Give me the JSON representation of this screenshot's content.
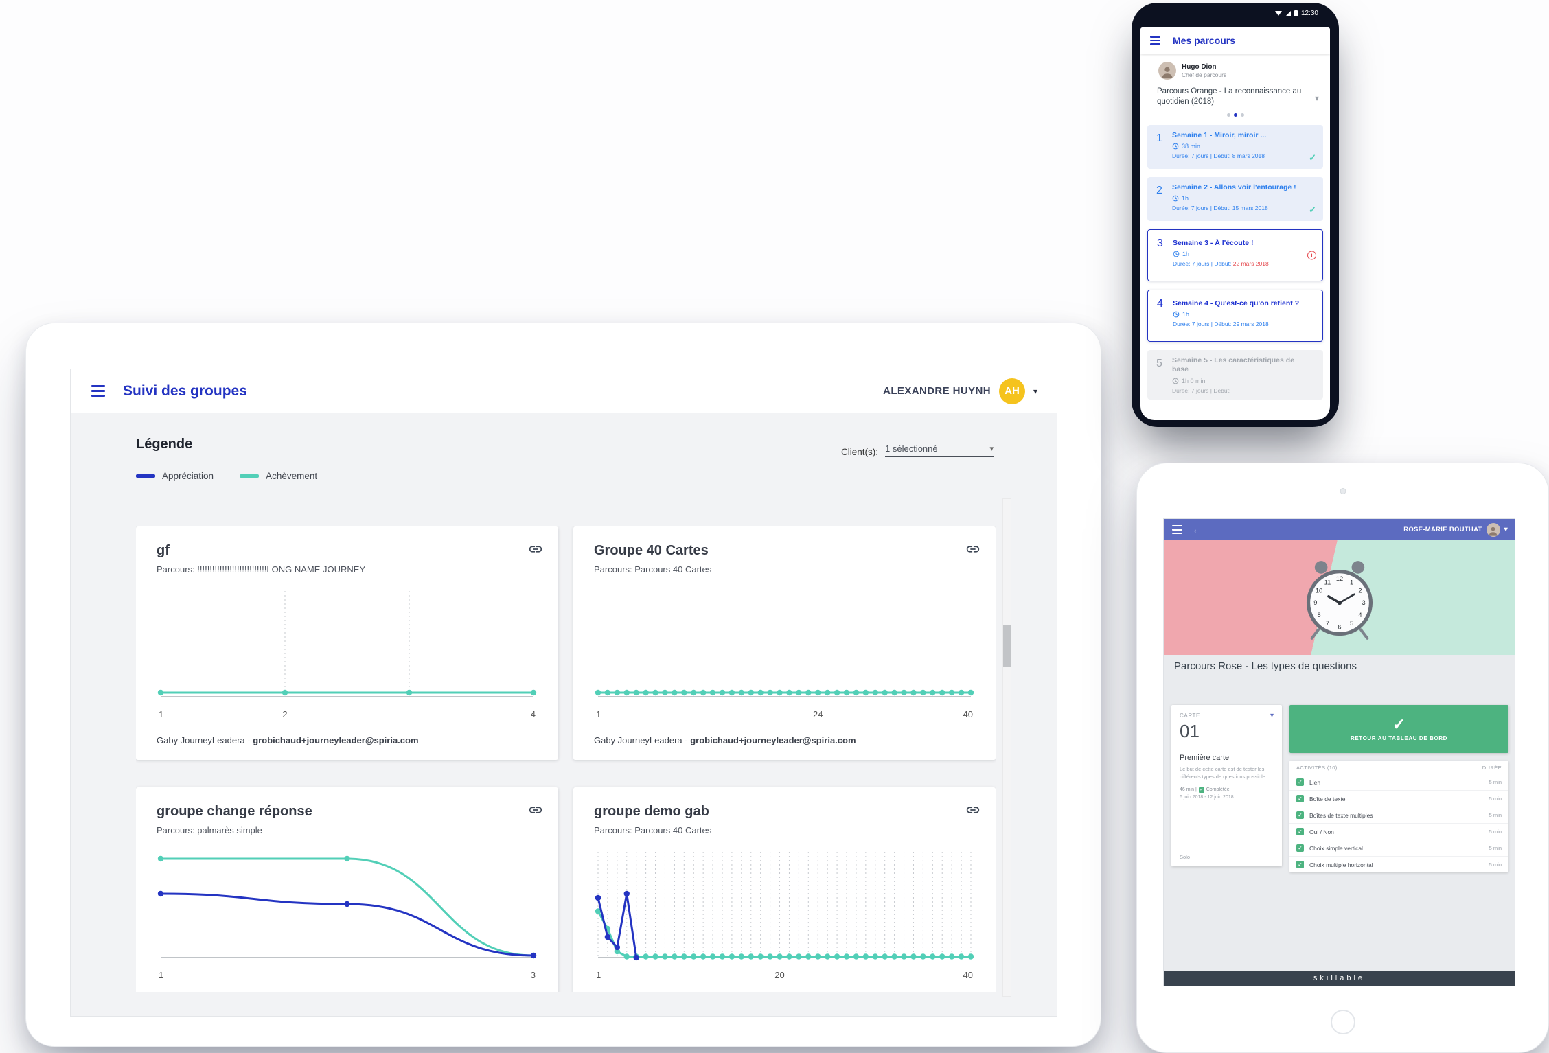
{
  "dashboard": {
    "title": "Suivi des groupes",
    "user": {
      "name": "ALEXANDRE HUYNH",
      "initials": "AH",
      "avatar_color": "#f5c31d"
    },
    "legend": {
      "heading": "Légende",
      "items": [
        {
          "label": "Appréciation",
          "color": "#2434c2"
        },
        {
          "label": "Achèvement",
          "color": "#52cfb7"
        }
      ]
    },
    "client_filter": {
      "label": "Client(s):",
      "value": "1 sélectionné"
    },
    "cards": [
      {
        "title": "gf",
        "subtitle": "Parcours: !!!!!!!!!!!!!!!!!!!!!!!!!!!!LONG NAME JOURNEY",
        "footer_name": "Gaby JourneyLeadera - ",
        "footer_email": "grobichaud+journeyleader@spiria.com",
        "chart": {
          "type": "line",
          "x_min": 1,
          "x_max": 4,
          "y_min": 0,
          "y_max": 100,
          "grid": [
            2,
            3
          ],
          "ticks": [
            {
              "x": 1,
              "label": "1"
            },
            {
              "x": 2,
              "label": "2"
            },
            {
              "x": 4,
              "label": "4"
            }
          ],
          "series": [
            {
              "name": "Achèvement",
              "color": "#52cfb7",
              "smooth": false,
              "x": [
                1,
                2,
                3,
                4
              ],
              "y": [
                4,
                4,
                4,
                4
              ]
            }
          ]
        }
      },
      {
        "title": "Groupe 40 Cartes",
        "subtitle": "Parcours: Parcours 40 Cartes",
        "footer_name": "Gaby JourneyLeadera - ",
        "footer_email": "grobichaud+journeyleader@spiria.com",
        "chart": {
          "type": "line",
          "x_min": 1,
          "x_max": 40,
          "y_min": 0,
          "y_max": 100,
          "grid": [],
          "ticks": [
            {
              "x": 1,
              "label": "1"
            },
            {
              "x": 24,
              "label": "24"
            },
            {
              "x": 40,
              "label": "40"
            }
          ],
          "series": [
            {
              "name": "Achèvement",
              "color": "#52cfb7",
              "smooth": false,
              "x_from": 1,
              "x_to": 40,
              "y": [
                4
              ],
              "y_pad": 4
            }
          ]
        }
      },
      {
        "title": "groupe change réponse",
        "subtitle": "Parcours: palmarès simple",
        "chart": {
          "type": "line",
          "x_min": 1,
          "x_max": 3,
          "y_min": 0,
          "y_max": 100,
          "grid": [
            2
          ],
          "ticks": [
            {
              "x": 1,
              "label": "1"
            },
            {
              "x": 3,
              "label": "3"
            }
          ],
          "series": [
            {
              "name": "Achèvement",
              "color": "#52cfb7",
              "smooth": true,
              "x": [
                1,
                2,
                3
              ],
              "y": [
                96,
                96,
                2
              ]
            },
            {
              "name": "Appréciation",
              "color": "#2434c2",
              "smooth": true,
              "x": [
                1,
                2,
                3
              ],
              "y": [
                62,
                52,
                2
              ]
            }
          ]
        }
      },
      {
        "title": "groupe demo gab",
        "subtitle": "Parcours: Parcours 40 Cartes",
        "chart": {
          "type": "line",
          "x_min": 1,
          "x_max": 40,
          "y_min": 0,
          "y_max": 100,
          "grid_range": {
            "from": 1,
            "to": 40,
            "step": 1
          },
          "ticks": [
            {
              "x": 1,
              "label": "1"
            },
            {
              "x": 20,
              "label": "20"
            },
            {
              "x": 40,
              "label": "40"
            }
          ],
          "series": [
            {
              "name": "Achèvement",
              "color": "#52cfb7",
              "smooth": false,
              "x_from": 1,
              "x_to": 40,
              "y": [
                45,
                28,
                6,
                1
              ],
              "y_pad": 1
            },
            {
              "name": "Appréciation",
              "color": "#2434c2",
              "smooth": false,
              "x": [
                1,
                2,
                3,
                4,
                5
              ],
              "y": [
                58,
                20,
                10,
                62,
                0
              ]
            }
          ]
        }
      }
    ]
  },
  "phone": {
    "status_time": "12:30",
    "header_title": "Mes parcours",
    "profile": {
      "name": "Hugo Dion",
      "role": "Chef de parcours"
    },
    "journey_title": "Parcours Orange - La reconnaissance au quotidien (2018)",
    "weeks": [
      {
        "num": "1",
        "title": "Semaine 1 - Miroir, miroir ...",
        "duration": "38 min",
        "meta_prefix": "Durée: 7 jours | Début:",
        "date": "8 mars 2018",
        "state": "done"
      },
      {
        "num": "2",
        "title": "Semaine 2 - Allons voir l'entourage !",
        "duration": "1h",
        "meta_prefix": "Durée: 7 jours | Début:",
        "date": "15 mars 2018",
        "state": "done"
      },
      {
        "num": "3",
        "title": "Semaine 3 - À l'écoute !",
        "duration": "1h",
        "meta_prefix": "Durée: 7 jours | Début:",
        "date": "22 mars 2018",
        "state": "alert"
      },
      {
        "num": "4",
        "title": "Semaine 4 - Qu'est-ce qu'on retient ?",
        "duration": "1h",
        "meta_prefix": "Durée: 7 jours | Début:",
        "date": "29 mars 2018",
        "state": "open"
      },
      {
        "num": "5",
        "title": "Semaine 5 - Les caractéristiques de base",
        "duration": "1h 0 min",
        "meta_prefix": "Durée: 7 jours | Début:",
        "date": "",
        "state": "disabled"
      }
    ]
  },
  "tablet": {
    "header_user": "ROSE-MARIE BOUTHAT",
    "title": "Parcours Rose - Les types de questions",
    "card": {
      "label": "CARTE",
      "number": "01",
      "name": "Première carte",
      "description": "Le but de cette carte est de tester les différents types de questions possible.",
      "status_prefix": "46 min |",
      "status_label": "Complétée",
      "dates": "6 juin 2018 - 12 juin 2018",
      "mode": "Solo"
    },
    "back_button": "RETOUR AU TABLEAU DE BORD",
    "activities": {
      "header_left": "ACTIVITÉS (10)",
      "header_right": "DURÉE",
      "rows": [
        {
          "label": "Lien",
          "duration": "5 min"
        },
        {
          "label": "Boîte de texte",
          "duration": "5 min"
        },
        {
          "label": "Boîtes de texte multiples",
          "duration": "5 min"
        },
        {
          "label": "Oui / Non",
          "duration": "5 min"
        },
        {
          "label": "Choix simple vertical",
          "duration": "5 min"
        },
        {
          "label": "Choix multiple horizontal",
          "duration": "5 min"
        }
      ]
    },
    "brand": "skillable"
  }
}
